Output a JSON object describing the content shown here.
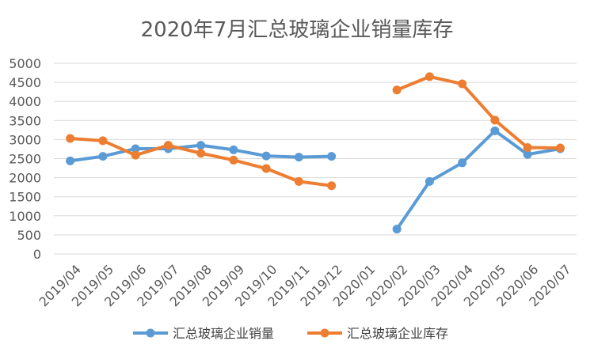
{
  "chart_data": {
    "type": "line",
    "title": "2020年7月汇总玻璃企业销量库存",
    "xlabel": "",
    "ylabel": "",
    "ylim": [
      0,
      5000
    ],
    "yticks": [
      0,
      500,
      1000,
      1500,
      2000,
      2500,
      3000,
      3500,
      4000,
      4500,
      5000
    ],
    "categories": [
      "2019/04",
      "2019/05",
      "2019/06",
      "2019/07",
      "2019/08",
      "2019/09",
      "2019/10",
      "2019/11",
      "2019/12",
      "2020/01",
      "2020/02",
      "2020/03",
      "2020/04",
      "2020/05",
      "2020/06",
      "2020/07"
    ],
    "grid": true,
    "legend_position": "bottom",
    "series": [
      {
        "name": "汇总玻璃企业销量",
        "color": "#5B9BD5",
        "values": [
          2440,
          2560,
          2760,
          2760,
          2850,
          2730,
          2570,
          2540,
          2560,
          null,
          650,
          1900,
          2390,
          3230,
          2610,
          2760
        ]
      },
      {
        "name": "汇总玻璃企业库存",
        "color": "#ED7D31",
        "values": [
          3030,
          2970,
          2590,
          2850,
          2640,
          2460,
          2240,
          1900,
          1790,
          null,
          4300,
          4650,
          4460,
          3510,
          2790,
          2780
        ]
      }
    ]
  }
}
